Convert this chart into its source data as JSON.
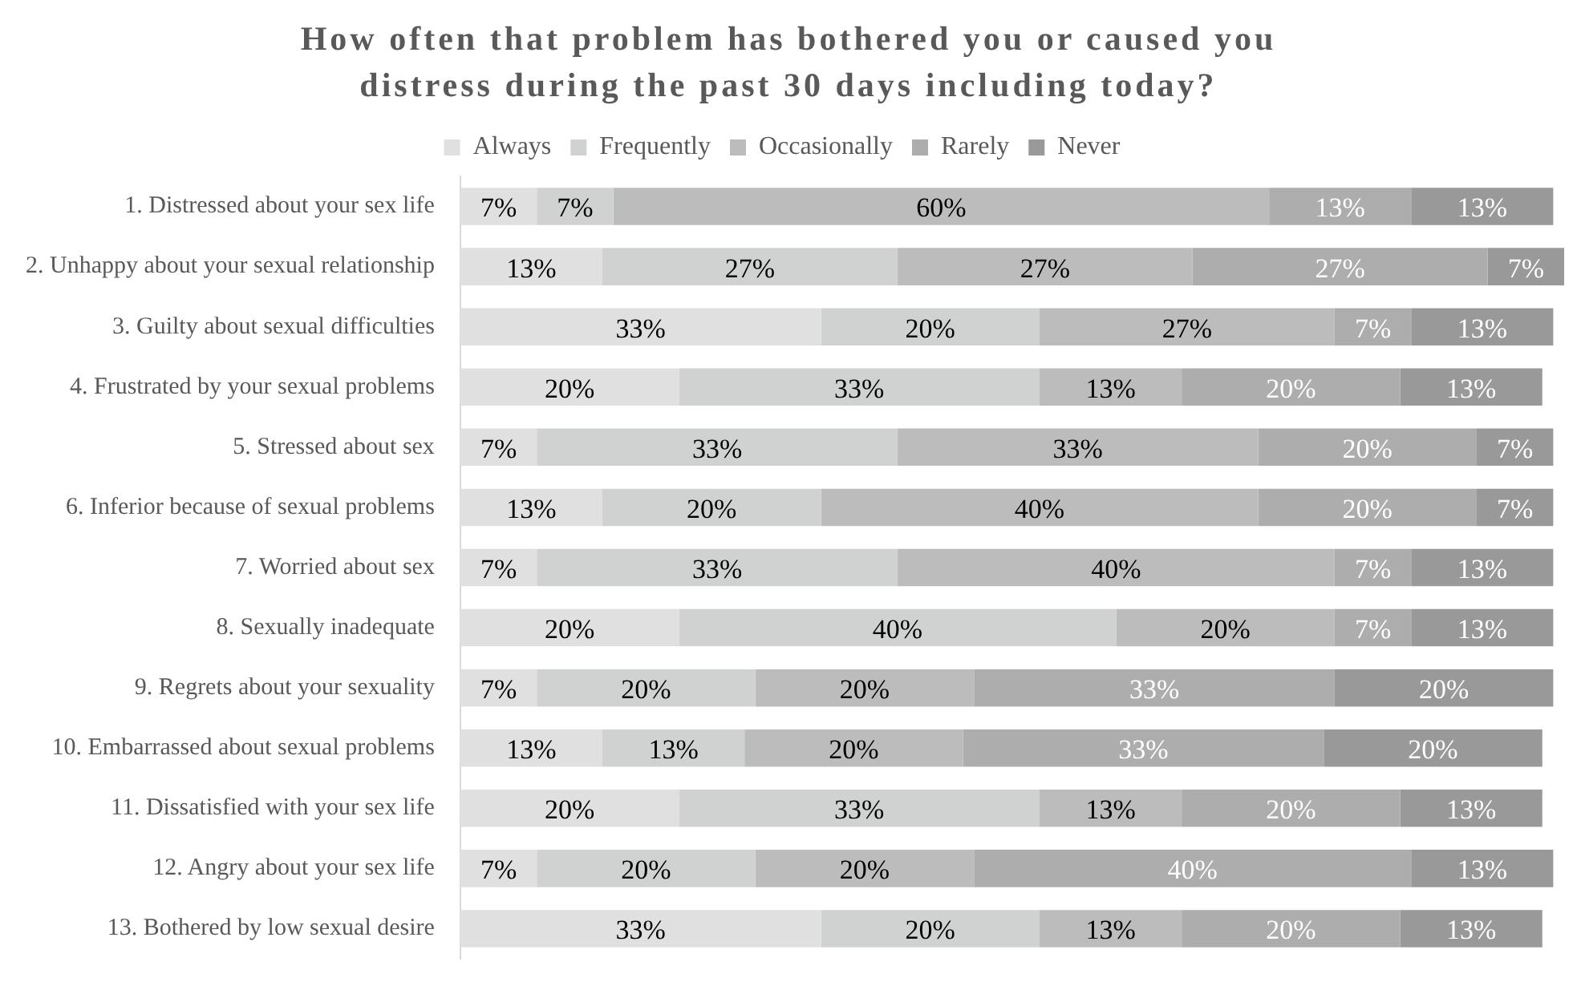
{
  "chart_data": {
    "type": "bar",
    "orientation": "horizontal",
    "stacked": true,
    "title": "How often that problem has bothered you or caused you distress during the past 30 days including today?",
    "categories": [
      "1. Distressed about your sex life",
      "2. Unhappy about your sexual relationship",
      "3. Guilty about sexual difficulties",
      "4. Frustrated by your sexual problems",
      "5. Stressed about sex",
      "6. Inferior because of sexual problems",
      "7. Worried about sex",
      "8. Sexually inadequate",
      "9. Regrets about your sexuality",
      "10. Embarrassed about sexual problems",
      "11. Dissatisfied with your sex life",
      "12. Angry about your sex life",
      "13. Bothered by low sexual desire"
    ],
    "series": [
      {
        "name": "Always",
        "color": "#e0e0e0",
        "values": [
          7,
          13,
          33,
          20,
          7,
          13,
          7,
          20,
          7,
          13,
          20,
          7,
          33
        ],
        "value_labels": [
          "7%",
          "13%",
          "33%",
          "20%",
          "7%",
          "13%",
          "7%",
          "20%",
          "7%",
          "13%",
          "20%",
          "7%",
          "33%"
        ]
      },
      {
        "name": "Frequently",
        "color": "#d0d2d1",
        "values": [
          7,
          27,
          20,
          33,
          33,
          20,
          33,
          40,
          20,
          13,
          33,
          20,
          20
        ],
        "value_labels": [
          "7%",
          "27%",
          "20%",
          "33%",
          "33%",
          "20%",
          "33%",
          "40%",
          "20%",
          "13%",
          "33%",
          "20%",
          "20%"
        ]
      },
      {
        "name": "Occasionally",
        "color": "#bcbcbc",
        "values": [
          60,
          27,
          27,
          13,
          33,
          40,
          40,
          20,
          20,
          20,
          13,
          20,
          13
        ],
        "value_labels": [
          "60%",
          "27%",
          "27%",
          "13%",
          "33%",
          "40%",
          "40%",
          "20%",
          "20%",
          "20%",
          "13%",
          "20%",
          "13%"
        ]
      },
      {
        "name": "Rarely",
        "color": "#adadad",
        "values": [
          13,
          27,
          7,
          20,
          20,
          20,
          7,
          7,
          33,
          33,
          20,
          40,
          20
        ],
        "value_labels": [
          "13%",
          "27%",
          "7%",
          "20%",
          "20%",
          "20%",
          "7%",
          "7%",
          "33%",
          "33%",
          "20%",
          "40%",
          "20%"
        ]
      },
      {
        "name": "Never",
        "color": "#999999",
        "values": [
          13,
          7,
          13,
          13,
          7,
          7,
          13,
          13,
          20,
          20,
          13,
          13,
          13
        ],
        "value_labels": [
          "13%",
          "7%",
          "13%",
          "13%",
          "7%",
          "7%",
          "13%",
          "13%",
          "20%",
          "20%",
          "13%",
          "13%",
          "13%"
        ]
      }
    ],
    "legend": "top",
    "tick_labels": "y"
  }
}
